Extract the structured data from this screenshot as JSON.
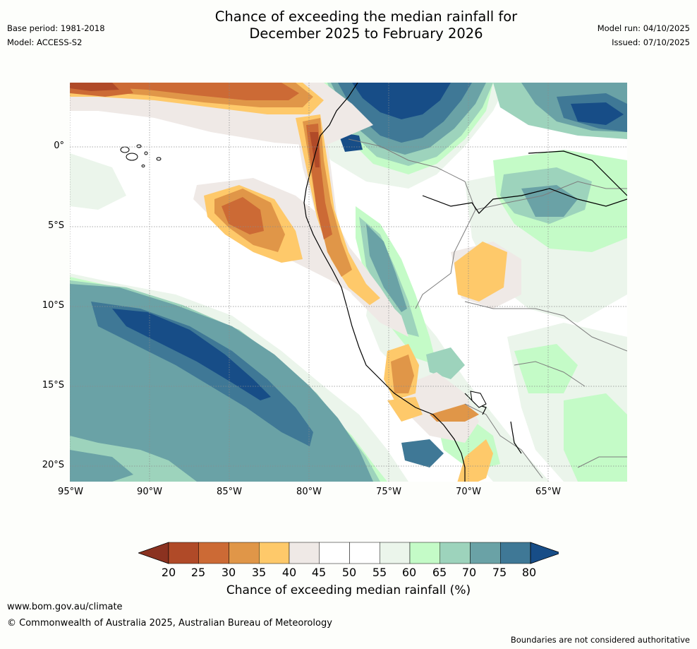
{
  "header": {
    "title_line1": "Chance of exceeding the median rainfall for",
    "title_line2": "December 2025 to February 2026",
    "base_period": "Base period: 1981-2018",
    "model": "Model: ACCESS-S2",
    "model_run": "Model run: 04/10/2025",
    "issued": "Issued: 07/10/2025"
  },
  "map": {
    "lat_labels": [
      "0°",
      "5°S",
      "10°S",
      "15°S",
      "20°S"
    ],
    "lon_labels": [
      "95°W",
      "90°W",
      "85°W",
      "80°W",
      "75°W",
      "70°W",
      "65°W"
    ]
  },
  "legend": {
    "title": "Chance of exceeding median rainfall (%)",
    "ticks": [
      "20",
      "25",
      "30",
      "35",
      "40",
      "45",
      "50",
      "55",
      "60",
      "65",
      "70",
      "75",
      "80"
    ],
    "colors": [
      "#8b3220",
      "#b04a28",
      "#cc6a35",
      "#e09648",
      "#fec96a",
      "#efe9e6",
      "#ffffff",
      "#ffffff",
      "#ebf5eb",
      "#c4fbc7",
      "#9dd3bc",
      "#6aa2a6",
      "#3f7896",
      "#174d87"
    ]
  },
  "footer": {
    "website": "www.bom.gov.au/climate",
    "copyright": "© Commonwealth of Australia 2025, Australian Bureau of Meteorology",
    "disclaimer": "Boundaries are not considered authoritative"
  }
}
